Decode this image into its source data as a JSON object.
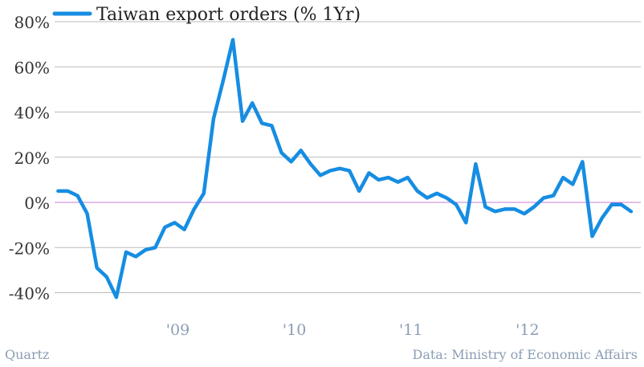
{
  "chart_data": {
    "type": "line",
    "title": "",
    "xlabel": "",
    "ylabel": "",
    "legend": {
      "label": "Taiwan export orders (% 1Yr)",
      "placement": "top-left"
    },
    "ylim": [
      -50,
      80
    ],
    "yticks": [
      80,
      60,
      40,
      20,
      0,
      -20,
      -40
    ],
    "ytick_labels": [
      "80%",
      "60%",
      "40%",
      "20%",
      "0%",
      "-20%",
      "-40%"
    ],
    "xticks": [
      {
        "label": "'09",
        "x": 2009.0
      },
      {
        "label": "'10",
        "x": 2010.0
      },
      {
        "label": "'11",
        "x": 2011.0
      },
      {
        "label": "'12",
        "x": 2012.0
      }
    ],
    "xlim": [
      2007.97,
      2013.0
    ],
    "grid": true,
    "zero_line": true,
    "colors": {
      "series": "#168de2",
      "grid": "#bbbbbb",
      "zero": "#c87dd8"
    },
    "series": [
      {
        "name": "Taiwan export orders (% 1Yr)",
        "x_start": 2008.0,
        "step_months": 1,
        "values": [
          5,
          5,
          3,
          -5,
          -29,
          -33,
          -42,
          -22,
          -24,
          -21,
          -20,
          -11,
          -9,
          -12,
          -3,
          4,
          37,
          54,
          72,
          36,
          44,
          35,
          34,
          22,
          18,
          23,
          17,
          12,
          14,
          15,
          14,
          5,
          13,
          10,
          11,
          9,
          11,
          5,
          2,
          4,
          2,
          -1,
          -9,
          17,
          -2,
          -4,
          -3,
          -3,
          -5,
          -2,
          2,
          3,
          11,
          8,
          18,
          -15,
          -7,
          -1,
          -1,
          -4
        ]
      }
    ]
  },
  "footer": {
    "source_left": "Quartz",
    "source_right": "Data: Ministry of Economic Affairs"
  }
}
